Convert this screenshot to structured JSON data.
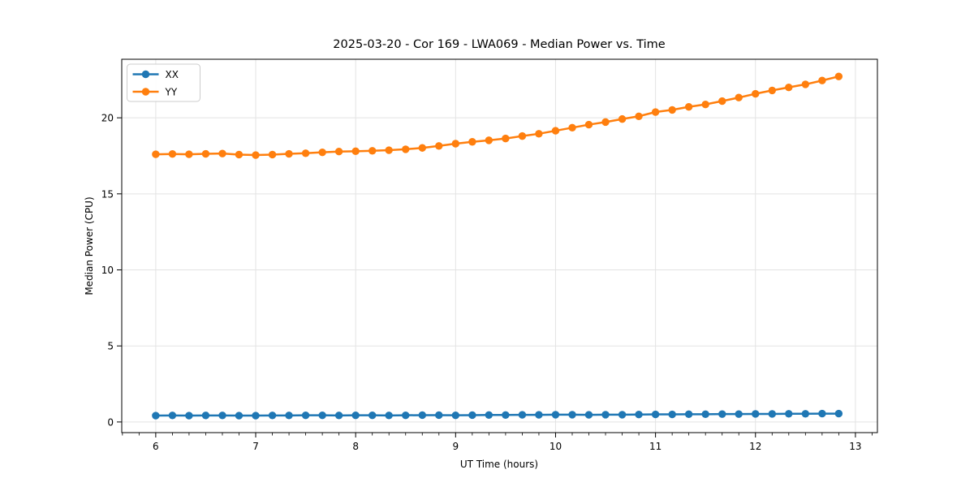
{
  "figure": {
    "background": "#ffffff"
  },
  "chart_data": {
    "type": "line",
    "title": "2025-03-20 - Cor 169 - LWA069 - Median Power vs. Time",
    "xlabel": "UT Time (hours)",
    "ylabel": "Median Power (CPU)",
    "xlim": [
      5.66,
      13.22
    ],
    "ylim": [
      -0.7,
      23.85
    ],
    "xticks": [
      6,
      7,
      8,
      9,
      10,
      11,
      12,
      13
    ],
    "yticks": [
      0,
      5,
      10,
      15,
      20
    ],
    "x_minor_interval": 0.16667,
    "grid": true,
    "grid_color": "#e3e3e3",
    "spine_color": "#000000",
    "legend_position": "upper-left",
    "x": [
      6,
      6.167,
      6.333,
      6.5,
      6.667,
      6.833,
      7,
      7.167,
      7.333,
      7.5,
      7.667,
      7.833,
      8,
      8.167,
      8.333,
      8.5,
      8.667,
      8.833,
      9,
      9.167,
      9.333,
      9.5,
      9.667,
      9.833,
      10,
      10.167,
      10.333,
      10.5,
      10.667,
      10.833,
      11,
      11.167,
      11.333,
      11.5,
      11.667,
      11.833,
      12,
      12.167,
      12.333,
      12.5,
      12.667,
      12.833
    ],
    "series": [
      {
        "name": "XX",
        "color": "#1f77b4",
        "values": [
          0.42,
          0.43,
          0.42,
          0.43,
          0.43,
          0.42,
          0.42,
          0.43,
          0.43,
          0.44,
          0.44,
          0.43,
          0.44,
          0.44,
          0.43,
          0.44,
          0.45,
          0.45,
          0.44,
          0.45,
          0.46,
          0.46,
          0.47,
          0.47,
          0.48,
          0.48,
          0.47,
          0.48,
          0.48,
          0.49,
          0.5,
          0.5,
          0.51,
          0.51,
          0.52,
          0.52,
          0.53,
          0.53,
          0.54,
          0.54,
          0.55,
          0.55
        ]
      },
      {
        "name": "YY",
        "color": "#ff7f0e",
        "values": [
          17.6,
          17.62,
          17.6,
          17.63,
          17.65,
          17.58,
          17.55,
          17.58,
          17.63,
          17.67,
          17.73,
          17.78,
          17.8,
          17.83,
          17.87,
          17.93,
          18.02,
          18.15,
          18.3,
          18.42,
          18.52,
          18.64,
          18.8,
          18.95,
          19.15,
          19.35,
          19.55,
          19.72,
          19.92,
          20.1,
          20.38,
          20.52,
          20.72,
          20.88,
          21.1,
          21.33,
          21.58,
          21.8,
          22.0,
          22.2,
          22.45,
          22.72
        ]
      }
    ]
  }
}
